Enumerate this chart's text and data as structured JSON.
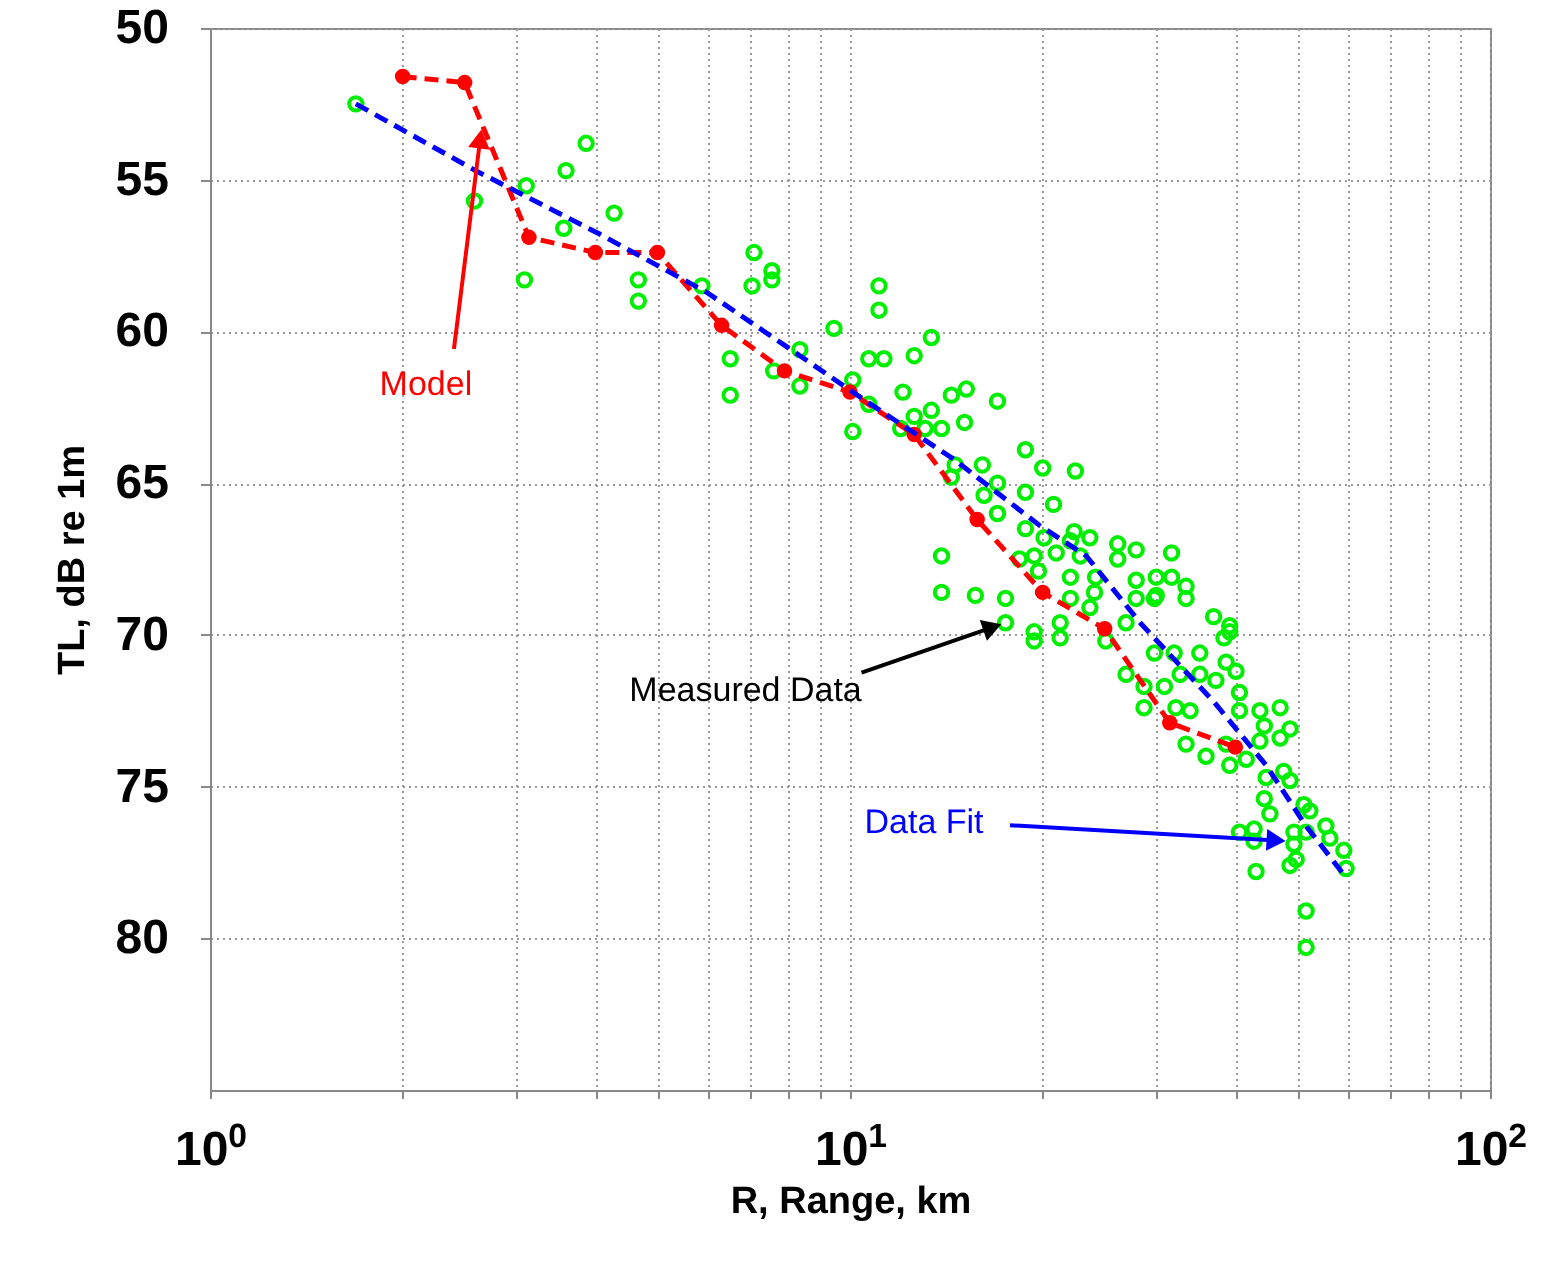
{
  "chart_data": {
    "type": "scatter",
    "xlabel": "R, Range, km",
    "ylabel": "TL, dB re 1m",
    "log": "x",
    "grid": true,
    "xlim": [
      1,
      100
    ],
    "xticks": [
      {
        "value": 1,
        "label": "10$^{0}$"
      },
      {
        "value": 2,
        "label": null
      },
      {
        "value": 3,
        "label": null
      },
      {
        "value": 4,
        "label": null
      },
      {
        "value": 5,
        "label": null
      },
      {
        "value": 6,
        "label": null
      },
      {
        "value": 7,
        "label": null
      },
      {
        "value": 8,
        "label": null
      },
      {
        "value": 9,
        "label": null
      },
      {
        "value": 10,
        "label": "10$^{1}$"
      },
      {
        "value": 20,
        "label": null
      },
      {
        "value": 30,
        "label": null
      },
      {
        "value": 40,
        "label": null
      },
      {
        "value": 50,
        "label": null
      },
      {
        "value": 60,
        "label": null
      },
      {
        "value": 70,
        "label": null
      },
      {
        "value": 80,
        "label": null
      },
      {
        "value": 90,
        "label": null
      },
      {
        "value": 100,
        "label": "10$^{2}$"
      }
    ],
    "ylim": [
      85,
      50
    ],
    "yticks": [
      50,
      55,
      60,
      65,
      70,
      75,
      80
    ],
    "series": [
      {
        "color": "#00ee00",
        "marker": "circle",
        "x": [
          1.69,
          2.59,
          3.12,
          3.6,
          3.87,
          3.1,
          3.57,
          4.28,
          4.67,
          4.67,
          5.87,
          6.5,
          6.5,
          7.08,
          7.03,
          7.55,
          7.55,
          7.6,
          8.35,
          8.35,
          9.44,
          10.1,
          10.7,
          10.1,
          11.1,
          11.1,
          10.7,
          11.3,
          12.6,
          13.4,
          12.1,
          12.6,
          13.4,
          13.1,
          12.0,
          13.9,
          14.4,
          15.2,
          15.1,
          17.0,
          18.8,
          20.0,
          22.5,
          14.6,
          14.4,
          16.1,
          17.0,
          16.2,
          17.0,
          18.8,
          20.8,
          18.8,
          20.1,
          22.4,
          23.7,
          18.4,
          19.4,
          19.7,
          21.0,
          22.1,
          22.9,
          26.2,
          28.0,
          26.2,
          31.8,
          22.1,
          24.2,
          28.0,
          30.1,
          31.8,
          33.5,
          33.5,
          13.9,
          13.9,
          15.7,
          17.5,
          24.1,
          28.0,
          30.1,
          37.0,
          39.2,
          17.5,
          19.4,
          19.4,
          21.3,
          21.3,
          22.1,
          23.7,
          25.1,
          27.0,
          29.9,
          27.0,
          28.8,
          31.0,
          28.8,
          32.3,
          34.0,
          29.9,
          32.1,
          32.8,
          35.2,
          35.2,
          38.4,
          39.2,
          37.3,
          38.7,
          40.1,
          40.6,
          40.6,
          33.5,
          36.0,
          38.7,
          39.2,
          41.6,
          43.7,
          44.4,
          47.0,
          47.0,
          48.7,
          43.7,
          44.7,
          44.4,
          47.6,
          48.7,
          45.3,
          51.2,
          52.3,
          55.4,
          51.6,
          49.4,
          40.6,
          42.8,
          42.8,
          43.1,
          49.4,
          49.8,
          48.7,
          56.2,
          59.1,
          59.6,
          51.6,
          51.6
        ],
        "values": [
          52.5,
          55.7,
          55.2,
          54.7,
          53.8,
          58.3,
          56.6,
          56.1,
          58.3,
          59.0,
          58.5,
          60.9,
          62.1,
          57.4,
          58.5,
          58.0,
          58.3,
          61.3,
          60.6,
          61.8,
          59.9,
          61.6,
          60.9,
          63.3,
          58.5,
          59.3,
          62.4,
          60.9,
          60.8,
          60.2,
          62.0,
          62.8,
          62.6,
          63.2,
          63.2,
          63.2,
          62.1,
          61.9,
          63.0,
          62.3,
          63.9,
          64.5,
          64.6,
          64.4,
          64.8,
          64.4,
          65.0,
          65.4,
          66.0,
          65.3,
          65.7,
          66.5,
          66.8,
          66.6,
          66.8,
          67.5,
          67.4,
          67.9,
          67.3,
          66.9,
          67.4,
          67.0,
          67.2,
          67.5,
          67.3,
          68.1,
          68.1,
          68.2,
          68.1,
          68.1,
          68.4,
          68.8,
          67.4,
          68.6,
          68.7,
          68.8,
          68.6,
          68.8,
          68.7,
          69.4,
          69.7,
          69.6,
          69.9,
          70.2,
          69.6,
          70.1,
          68.8,
          69.1,
          70.2,
          69.6,
          68.8,
          71.3,
          71.7,
          71.7,
          72.4,
          72.4,
          72.5,
          70.6,
          70.6,
          71.3,
          70.6,
          71.3,
          70.1,
          69.9,
          71.5,
          70.9,
          71.2,
          71.9,
          72.5,
          73.6,
          74.0,
          73.6,
          74.3,
          74.1,
          72.5,
          73.0,
          72.4,
          73.4,
          73.1,
          73.5,
          74.7,
          75.4,
          74.5,
          74.8,
          75.9,
          75.6,
          75.8,
          76.3,
          76.5,
          76.5,
          76.5,
          76.4,
          76.8,
          77.8,
          76.9,
          77.4,
          77.6,
          76.7,
          77.1,
          77.7,
          79.1,
          80.3
        ]
      },
      {
        "type": "line",
        "color": "#ff0000",
        "marker": "circle",
        "line_style": "dashed",
        "x": [
          2.0,
          2.5,
          3.15,
          4.0,
          5.0,
          6.3,
          7.9,
          10,
          12.6,
          15.8,
          20,
          25,
          31.6,
          40
        ],
        "values": [
          51.6,
          51.8,
          56.9,
          57.4,
          57.4,
          59.8,
          61.3,
          62.0,
          63.4,
          66.2,
          68.6,
          69.8,
          72.9,
          73.7
        ]
      },
      {
        "type": "line",
        "color": "#0000ff",
        "marker": "none",
        "line_style": "dashed",
        "x": [
          1.69,
          2.6,
          4.07,
          5.96,
          8.35,
          10.6,
          14.5,
          19.8,
          23.4,
          28.4,
          37,
          44.7,
          51.6,
          59.6
        ],
        "values": [
          52.5,
          54.7,
          56.8,
          58.7,
          60.8,
          62.3,
          64.2,
          66.4,
          67.4,
          69.6,
          72.2,
          74.3,
          76.3,
          78.0
        ]
      }
    ],
    "annotations": [
      {
        "text": "Model",
        "x": 2.66,
        "y": 53.2
      },
      {
        "text": "Measured Data",
        "x": 17.5,
        "y": 69.6
      },
      {
        "text": "Data Fit",
        "x": 48.7,
        "y": 76.8
      }
    ]
  }
}
